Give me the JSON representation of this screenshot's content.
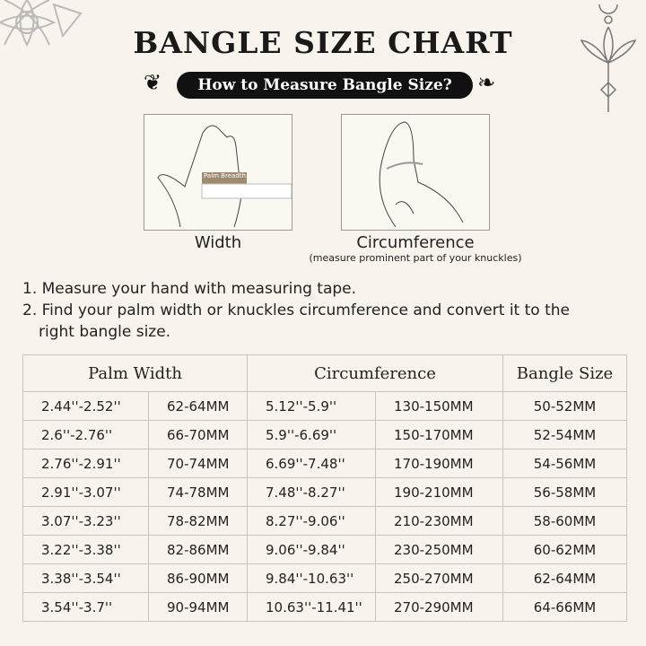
{
  "title": "BANGLE SIZE CHART",
  "subtitle": "How to Measure Bangle Size?",
  "images": {
    "width_label": "Width",
    "circ_label": "Circumference",
    "circ_note": "(measure prominent part of your knuckles)",
    "ruler_label": "Palm Breadth"
  },
  "steps": [
    "1. Measure your hand with measuring tape.",
    "2. Find your palm width or knuckles circumference and convert it to the",
    "right bangle size."
  ],
  "table": {
    "headers": [
      "Palm Width",
      "Circumference",
      "Bangle Size"
    ],
    "rows": [
      [
        "2.44''-2.52''",
        "62-64MM",
        "5.12''-5.9''",
        "130-150MM",
        "50-52MM"
      ],
      [
        "2.6''-2.76''",
        "66-70MM",
        "5.9''-6.69''",
        "150-170MM",
        "52-54MM"
      ],
      [
        "2.76''-2.91''",
        "70-74MM",
        "6.69''-7.48''",
        "170-190MM",
        "54-56MM"
      ],
      [
        "2.91''-3.07''",
        "74-78MM",
        "7.48''-8.27''",
        "190-210MM",
        "56-58MM"
      ],
      [
        "3.07''-3.23''",
        "78-82MM",
        "8.27''-9.06''",
        "210-230MM",
        "58-60MM"
      ],
      [
        "3.22''-3.38''",
        "82-86MM",
        "9.06''-9.84''",
        "230-250MM",
        "60-62MM"
      ],
      [
        "3.38''-3.54''",
        "86-90MM",
        "9.84''-10.63''",
        "250-270MM",
        "62-64MM"
      ],
      [
        "3.54''-3.7''",
        "90-94MM",
        "10.63''-11.41''",
        "270-290MM",
        "64-66MM"
      ]
    ]
  }
}
